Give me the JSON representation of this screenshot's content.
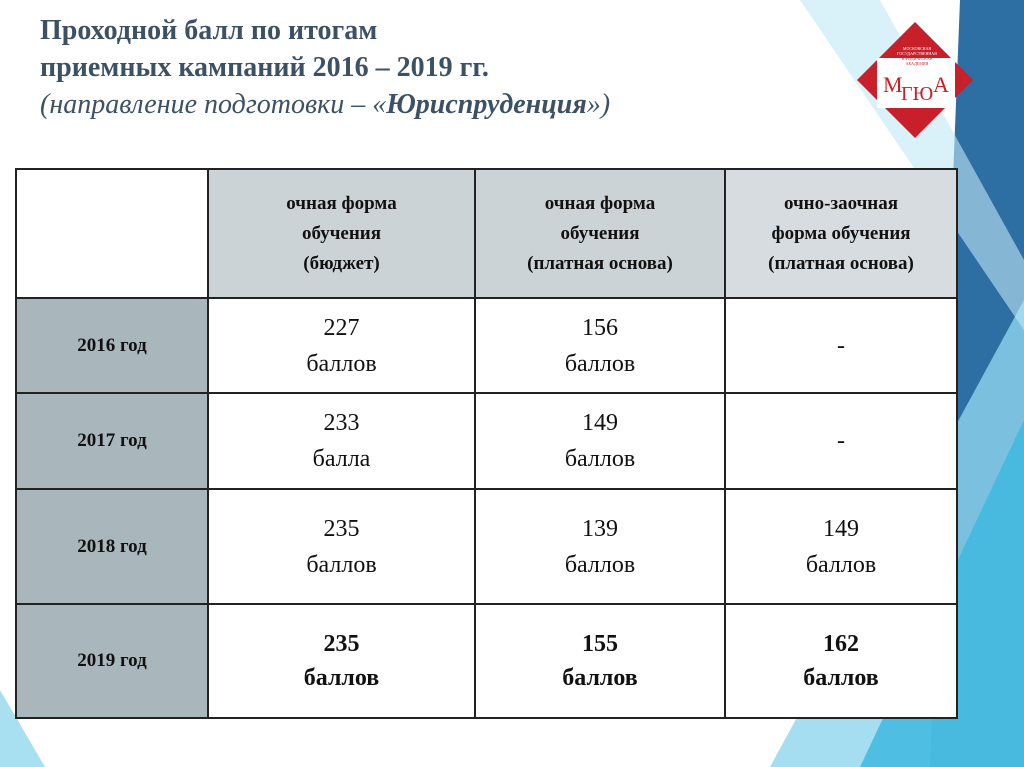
{
  "title": {
    "line1": "Проходной балл по итогам",
    "line2": "приемных кампаний 2016 – 2019 гг.",
    "line3_before": "(направление подготовки – «",
    "line3_bold": "Юриспруденция",
    "line3_after": "»)"
  },
  "logo": {
    "small": [
      "МОСКОВСКАЯ",
      "ГОСУДАРСТВЕННАЯ",
      "ЮРИДИЧЕСКАЯ",
      "АКАДЕМИЯ"
    ],
    "m": "М",
    "mid": "ГЮ",
    "a": "А"
  },
  "table": {
    "header": [
      [
        "очная форма",
        "обучения",
        "(бюджет)"
      ],
      [
        "очная форма",
        "обучения",
        "(платная основа)"
      ],
      [
        "очно-заочная",
        "форма обучения",
        "(платная основа)"
      ]
    ],
    "rows": [
      {
        "year": "2016 год",
        "cells": [
          {
            "value": "227",
            "unit": "баллов"
          },
          {
            "value": "156",
            "unit": "баллов"
          },
          {
            "value": "-"
          }
        ]
      },
      {
        "year": "2017 год",
        "cells": [
          {
            "value": "233",
            "unit": "балла"
          },
          {
            "value": "149",
            "unit": "баллов"
          },
          {
            "value": "-"
          }
        ]
      },
      {
        "year": "2018 год",
        "cells": [
          {
            "value": "235",
            "unit": "баллов"
          },
          {
            "value": "139",
            "unit": "баллов"
          },
          {
            "value": "149",
            "unit": "баллов"
          }
        ]
      },
      {
        "year": "2019 год",
        "bold": true,
        "cells": [
          {
            "value": "235",
            "unit": "баллов"
          },
          {
            "value": "155",
            "unit": "баллов"
          },
          {
            "value": "162",
            "unit": "баллов"
          }
        ]
      }
    ]
  }
}
